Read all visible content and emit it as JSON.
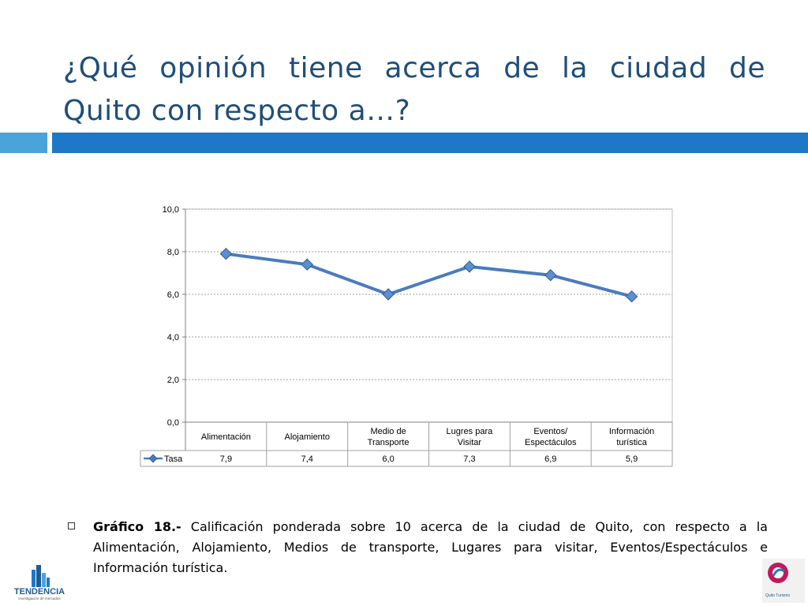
{
  "slide": {
    "title": "¿Qué opinión tiene acerca de la ciudad de Quito con respecto a…?",
    "caption_bold": "Gráfico 18.-",
    "caption_text": " Calificación ponderada sobre 10 acerca de la ciudad de Quito, con respecto a la Alimentación, Alojamiento, Medios de transporte, Lugares para visitar, Eventos/Espectáculos e Información turística.",
    "logo_left_text": "TENDENCIA",
    "logo_left_subtext": "investigación de mercados",
    "logo_right_text": "Quito Turismo",
    "colors": {
      "title": "#1f4e79",
      "bar_light": "#4aa3d9",
      "bar_dark": "#1e78c8",
      "series": "#4a7bbd"
    }
  },
  "chart_data": {
    "type": "line",
    "categories": [
      [
        "Alimentación"
      ],
      [
        "Alojamiento"
      ],
      [
        "Medio de",
        "Transporte"
      ],
      [
        "Lugres para",
        "Visitar"
      ],
      [
        "Eventos/",
        "Espectáculos"
      ],
      [
        "Información",
        "turística"
      ]
    ],
    "series": [
      {
        "name": "Tasa",
        "values": [
          7.9,
          7.4,
          6.0,
          7.3,
          6.9,
          5.9
        ],
        "labels": [
          "7,9",
          "7,4",
          "6,0",
          "7,3",
          "6,9",
          "5,9"
        ]
      }
    ],
    "yticks": [
      "0,0",
      "2,0",
      "4,0",
      "6,0",
      "8,0",
      "10,0"
    ],
    "ylim": [
      0,
      10
    ],
    "grid": true,
    "legend": "data-table",
    "marker": "diamond"
  }
}
